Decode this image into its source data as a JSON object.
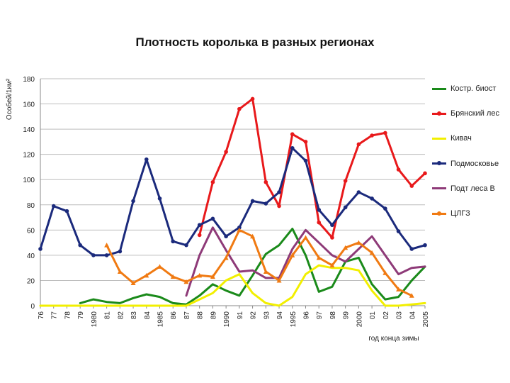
{
  "chart_data": {
    "type": "line",
    "title": "Плотность королька в разных регионах",
    "xlabel": "год конца зимы",
    "ylabel": "Особей/1км²",
    "ylim": [
      0,
      180
    ],
    "yticks": [
      0,
      20,
      40,
      60,
      80,
      100,
      120,
      140,
      160,
      180
    ],
    "categories": [
      "76",
      "77",
      "78",
      "79",
      "1980",
      "81",
      "82",
      "83",
      "84",
      "1985",
      "86",
      "87",
      "88",
      "89",
      "1990",
      "91",
      "92",
      "93",
      "94",
      "1995",
      "96",
      "97",
      "98",
      "99",
      "2000",
      "01",
      "02",
      "03",
      "04",
      "2005"
    ],
    "grid": "horizontal",
    "legend_position": "right",
    "series": [
      {
        "name": "Костр. биост",
        "color": "#1a8a1a",
        "marker": "none",
        "values": [
          null,
          null,
          null,
          2,
          5,
          3,
          2,
          6,
          9,
          7,
          2,
          1,
          8,
          17,
          12,
          8,
          24,
          41,
          48,
          61,
          40,
          11,
          15,
          35,
          38,
          17,
          5,
          7,
          20,
          31
        ]
      },
      {
        "name": "Брянский лес",
        "color": "#e8191b",
        "marker": "dot",
        "values": [
          null,
          null,
          null,
          null,
          null,
          null,
          null,
          null,
          null,
          null,
          null,
          null,
          56,
          98,
          122,
          156,
          164,
          98,
          79,
          136,
          130,
          66,
          54,
          99,
          128,
          135,
          137,
          108,
          95,
          105
        ]
      },
      {
        "name": "Кивач",
        "color": "#f2ef00",
        "marker": "none",
        "values": [
          0,
          0,
          0,
          0,
          0,
          0,
          0,
          0,
          0,
          0,
          0,
          0,
          5,
          10,
          20,
          25,
          10,
          2,
          0,
          7,
          25,
          32,
          30,
          30,
          28,
          12,
          0,
          0,
          1,
          2
        ]
      },
      {
        "name": "Подмосковье",
        "color": "#1b2a7c",
        "marker": "dot",
        "values": [
          45,
          79,
          75,
          48,
          40,
          40,
          43,
          83,
          116,
          85,
          51,
          48,
          64,
          69,
          55,
          62,
          83,
          81,
          90,
          125,
          115,
          76,
          64,
          78,
          90,
          85,
          77,
          59,
          45,
          48
        ]
      },
      {
        "name": "Подт леса В",
        "color": "#8e3a78",
        "marker": "none",
        "values": [
          null,
          null,
          null,
          null,
          null,
          null,
          null,
          null,
          null,
          null,
          null,
          8,
          40,
          62,
          44,
          27,
          28,
          22,
          22,
          45,
          60,
          50,
          40,
          35,
          45,
          55,
          40,
          25,
          30,
          31
        ]
      },
      {
        "name": "ЦЛГЗ",
        "color": "#f07a12",
        "marker": "triangle",
        "values": [
          null,
          null,
          null,
          null,
          null,
          48,
          27,
          18,
          24,
          31,
          23,
          19,
          24,
          23,
          38,
          60,
          55,
          27,
          20,
          40,
          54,
          38,
          32,
          46,
          50,
          42,
          26,
          13,
          8,
          null
        ]
      }
    ]
  }
}
